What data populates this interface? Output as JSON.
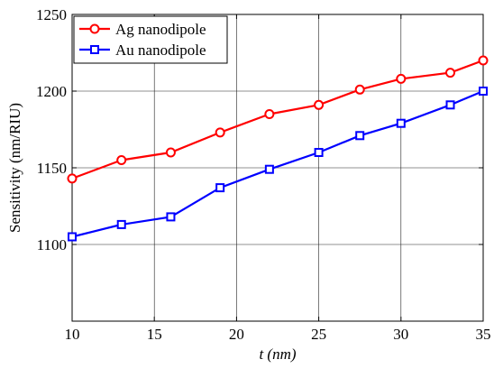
{
  "chart_data": {
    "type": "line",
    "title": "",
    "xlabel_italic": "t (nm)",
    "ylabel": "Sensitivity (nm/RIU)",
    "xlim": [
      10,
      35
    ],
    "ylim": [
      1050,
      1250
    ],
    "x_ticks": [
      10,
      15,
      20,
      25,
      30,
      35
    ],
    "y_ticks": [
      1100,
      1150,
      1200,
      1250
    ],
    "grid": true,
    "legend_position": "top-left",
    "series": [
      {
        "name": "Ag nanodipole",
        "color": "#ff0000",
        "marker": "circle",
        "x": [
          10,
          13,
          16,
          19,
          22,
          25,
          27.5,
          30,
          33,
          35
        ],
        "y": [
          1143,
          1155,
          1160,
          1173,
          1185,
          1191,
          1201,
          1208,
          1212,
          1220
        ]
      },
      {
        "name": "Au nanodipole",
        "color": "#0000ff",
        "marker": "square",
        "x": [
          10,
          13,
          16,
          19,
          22,
          25,
          27.5,
          30,
          33,
          35
        ],
        "y": [
          1105,
          1113,
          1118,
          1137,
          1149,
          1160,
          1171,
          1179,
          1191,
          1200
        ]
      }
    ]
  }
}
